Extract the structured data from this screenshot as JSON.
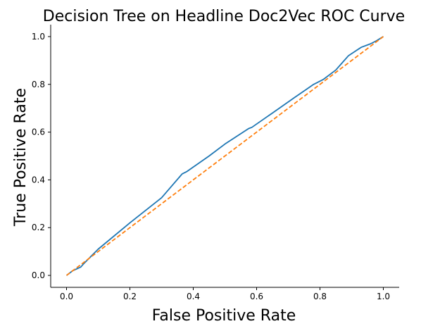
{
  "chart_data": {
    "type": "line",
    "title": "Decision Tree on Headline Doc2Vec ROC Curve",
    "xlabel": "False Positive Rate",
    "ylabel": "True Positive Rate",
    "xlim": [
      -0.05,
      1.05
    ],
    "ylim": [
      -0.05,
      1.05
    ],
    "xticks": [
      "0.0",
      "0.2",
      "0.4",
      "0.6",
      "0.8",
      "1.0"
    ],
    "yticks": [
      "0.0",
      "0.2",
      "0.4",
      "0.6",
      "0.8",
      "1.0"
    ],
    "grid": false,
    "series": [
      {
        "color": "#1f77b4",
        "style": "solid",
        "x": [
          0.0,
          0.02,
          0.045,
          0.055,
          0.1,
          0.2,
          0.3,
          0.365,
          0.38,
          0.45,
          0.5,
          0.575,
          0.585,
          0.65,
          0.72,
          0.78,
          0.81,
          0.85,
          0.87,
          0.89,
          0.93,
          0.96,
          0.975,
          1.0
        ],
        "y": [
          0.0,
          0.02,
          0.035,
          0.05,
          0.11,
          0.22,
          0.325,
          0.425,
          0.435,
          0.5,
          0.55,
          0.615,
          0.62,
          0.68,
          0.745,
          0.8,
          0.82,
          0.86,
          0.89,
          0.92,
          0.955,
          0.97,
          0.98,
          1.0
        ]
      },
      {
        "color": "#ff7f0e",
        "style": "dashed",
        "x": [
          0.0,
          1.0
        ],
        "y": [
          0.0,
          1.0
        ]
      }
    ]
  }
}
